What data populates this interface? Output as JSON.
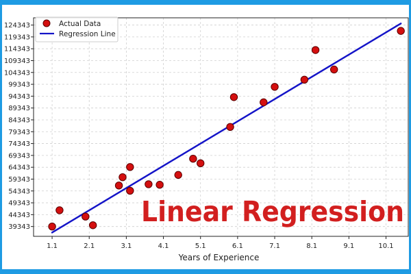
{
  "chart_data": {
    "type": "scatter",
    "title": "",
    "overlay_text": "Linear Regression",
    "xlabel": "Years of Experience",
    "ylabel": "",
    "x_ticks": [
      "1.1",
      "2.1",
      "3.1",
      "4.1",
      "5.1",
      "6.1",
      "7.1",
      "8.1",
      "9.1",
      "10.1"
    ],
    "y_ticks": [
      "39343",
      "44343",
      "49343",
      "54343",
      "59343",
      "64343",
      "69343",
      "74343",
      "79343",
      "84343",
      "89343",
      "94343",
      "99343",
      "104343",
      "109343",
      "114343",
      "119343",
      "124343"
    ],
    "xlim": [
      0.6,
      10.7
    ],
    "ylim": [
      35200,
      127400
    ],
    "grid": true,
    "legend_position": "top-left",
    "series": [
      {
        "name": "Actual Data",
        "kind": "scatter",
        "color": "#d40f0f",
        "x": [
          1.1,
          1.3,
          2.0,
          2.2,
          2.9,
          3.0,
          3.2,
          3.2,
          3.7,
          4.0,
          4.5,
          4.9,
          5.1,
          5.9,
          6.0,
          6.8,
          7.1,
          7.9,
          8.2,
          8.7,
          10.5
        ],
        "y": [
          39343,
          46205,
          43525,
          39891,
          56642,
          60150,
          54445,
          64445,
          57189,
          56957,
          61111,
          67938,
          66029,
          81363,
          93940,
          91738,
          98273,
          101302,
          113812,
          105582,
          121872
        ]
      },
      {
        "name": "Regression Line",
        "kind": "line",
        "color": "#1414c8",
        "x": [
          1.1,
          10.5
        ],
        "y": [
          36800,
          125000
        ]
      }
    ]
  }
}
